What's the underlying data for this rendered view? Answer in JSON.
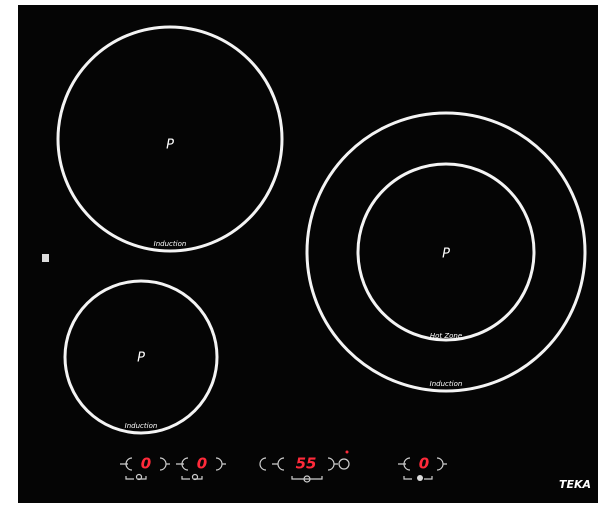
{
  "zones": [
    {
      "mark": "P",
      "label": "Induction"
    },
    {
      "mark": "P",
      "label": "Induction"
    },
    {
      "mark": "P",
      "label": "Induction",
      "inner_label": "Hot Zone"
    }
  ],
  "controls": [
    {
      "display": "0"
    },
    {
      "display": "0"
    },
    {
      "display": "55"
    },
    {
      "display": "0"
    }
  ],
  "brand": "TEKA"
}
